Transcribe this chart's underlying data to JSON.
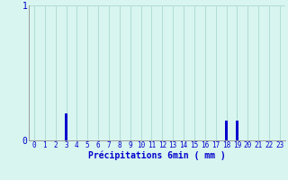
{
  "hours": [
    0,
    1,
    2,
    3,
    4,
    5,
    6,
    7,
    8,
    9,
    10,
    11,
    12,
    13,
    14,
    15,
    16,
    17,
    18,
    19,
    20,
    21,
    22,
    23
  ],
  "precipitation": [
    0,
    0,
    0,
    0.2,
    0,
    0,
    0,
    0,
    0,
    0,
    0,
    0,
    0,
    0,
    0,
    0,
    0,
    0,
    0.15,
    0.15,
    0,
    0,
    0,
    0
  ],
  "bar_color": "#0000cc",
  "background_color": "#d8f5f0",
  "grid_color": "#b0ddd4",
  "axis_color": "#999999",
  "label_color": "#0000cc",
  "xlabel": "Précipitations 6min ( mm )",
  "ylim": [
    0,
    1
  ],
  "xlim": [
    -0.5,
    23.5
  ],
  "yticks": [
    0,
    1
  ],
  "xticks": [
    0,
    1,
    2,
    3,
    4,
    5,
    6,
    7,
    8,
    9,
    10,
    11,
    12,
    13,
    14,
    15,
    16,
    17,
    18,
    19,
    20,
    21,
    22,
    23
  ]
}
